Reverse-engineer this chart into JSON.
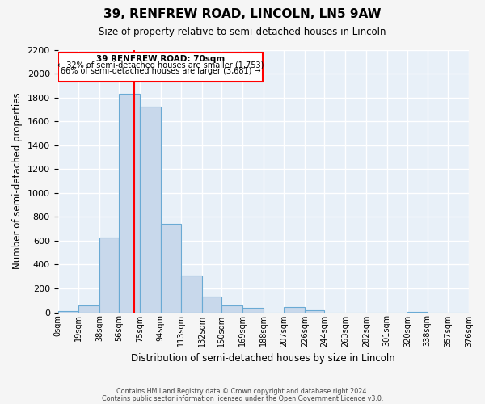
{
  "title": "39, RENFREW ROAD, LINCOLN, LN5 9AW",
  "subtitle": "Size of property relative to semi-detached houses in Lincoln",
  "xlabel": "Distribution of semi-detached houses by size in Lincoln",
  "ylabel": "Number of semi-detached properties",
  "bar_color": "#c8d8eb",
  "bar_edge_color": "#6aaad4",
  "bg_color": "#e8f0f8",
  "grid_color": "#ffffff",
  "bins": [
    0,
    19,
    38,
    56,
    75,
    94,
    113,
    132,
    150,
    169,
    188,
    207,
    226,
    244,
    263,
    282,
    301,
    320,
    338,
    357,
    376
  ],
  "bin_labels": [
    "0sqm",
    "19sqm",
    "38sqm",
    "56sqm",
    "75sqm",
    "94sqm",
    "113sqm",
    "132sqm",
    "150sqm",
    "169sqm",
    "188sqm",
    "207sqm",
    "226sqm",
    "244sqm",
    "263sqm",
    "282sqm",
    "301sqm",
    "320sqm",
    "338sqm",
    "357sqm",
    "376sqm"
  ],
  "bar_heights": [
    10,
    60,
    625,
    1830,
    1720,
    740,
    305,
    130,
    60,
    40,
    0,
    45,
    20,
    0,
    0,
    0,
    0,
    5,
    0,
    0
  ],
  "red_line_x": 70,
  "annotation_title": "39 RENFREW ROAD: 70sqm",
  "annotation_line1": "← 32% of semi-detached houses are smaller (1,753)",
  "annotation_line2": "66% of semi-detached houses are larger (3,681) →",
  "ylim": [
    0,
    2200
  ],
  "yticks": [
    0,
    200,
    400,
    600,
    800,
    1000,
    1200,
    1400,
    1600,
    1800,
    2000,
    2200
  ],
  "footer1": "Contains HM Land Registry data © Crown copyright and database right 2024.",
  "footer2": "Contains public sector information licensed under the Open Government Licence v3.0."
}
